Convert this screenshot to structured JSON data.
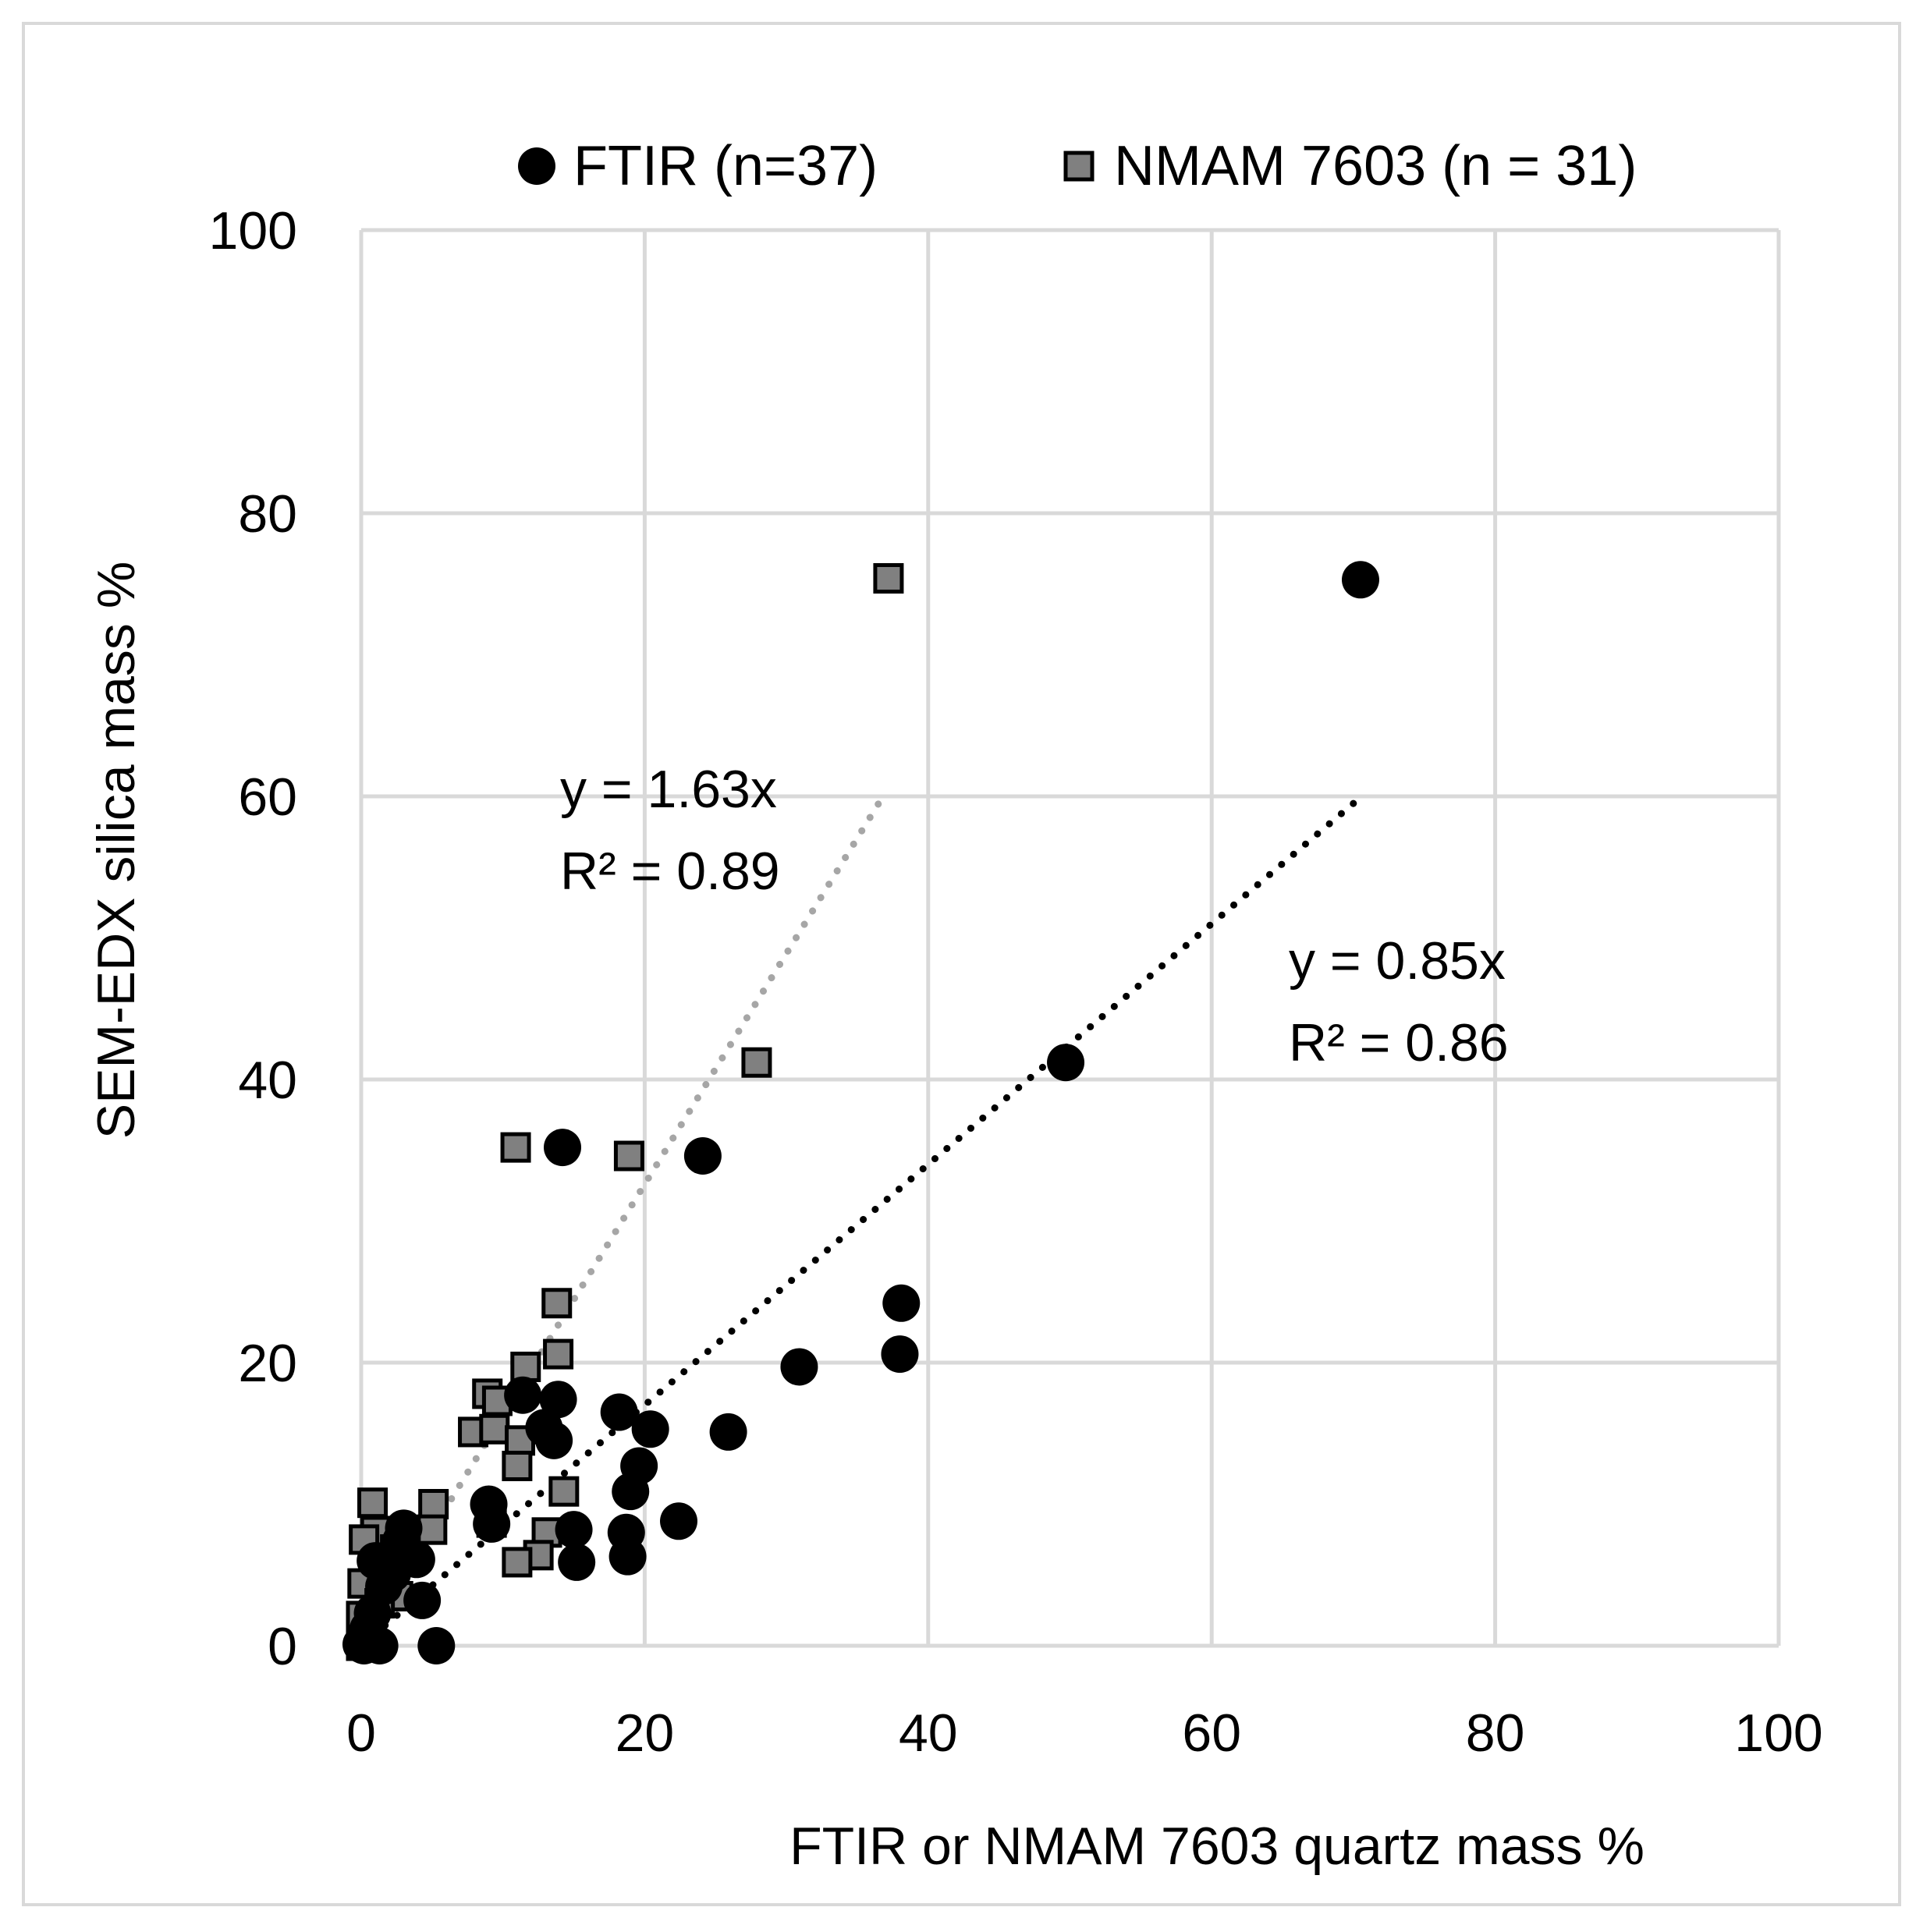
{
  "chart_data": {
    "type": "scatter",
    "title": "",
    "xlabel": "FTIR or NMAM 7603 quartz mass %",
    "ylabel": "SEM-EDX silica mass %",
    "xlim": [
      0,
      100
    ],
    "ylim": [
      0,
      100
    ],
    "x_ticks": [
      0,
      20,
      40,
      60,
      80,
      100
    ],
    "y_ticks": [
      0,
      20,
      40,
      60,
      80,
      100
    ],
    "grid": true,
    "legend_position": "top",
    "series": [
      {
        "name": "FTIR (n=37)",
        "marker": "circle",
        "color": "#000000",
        "points": [
          [
            70.5,
            75.3
          ],
          [
            49.7,
            41.2
          ],
          [
            24.1,
            34.6
          ],
          [
            14.2,
            35.2
          ],
          [
            38.1,
            24.2
          ],
          [
            38.0,
            20.6
          ],
          [
            30.9,
            19.7
          ],
          [
            25.9,
            15.1
          ],
          [
            20.4,
            15.3
          ],
          [
            19.6,
            12.7
          ],
          [
            19.0,
            10.9
          ],
          [
            18.2,
            16.5
          ],
          [
            22.4,
            8.8
          ],
          [
            18.7,
            8.0
          ],
          [
            18.8,
            6.3
          ],
          [
            15.2,
            5.9
          ],
          [
            15.0,
            8.2
          ],
          [
            13.9,
            17.4
          ],
          [
            13.6,
            14.5
          ],
          [
            12.9,
            15.4
          ],
          [
            11.4,
            17.7
          ],
          [
            9.0,
            10.0
          ],
          [
            9.2,
            8.6
          ],
          [
            5.3,
            0.0
          ],
          [
            4.3,
            3.2
          ],
          [
            3.9,
            6.1
          ],
          [
            3.0,
            8.3
          ],
          [
            2.2,
            5.1
          ],
          [
            1.6,
            4.2
          ],
          [
            1.3,
            0.0
          ],
          [
            0.8,
            2.3
          ],
          [
            0.5,
            1.2
          ],
          [
            0.2,
            0.0
          ],
          [
            0.0,
            0.1
          ],
          [
            0.3,
            0.5
          ],
          [
            2.8,
            7.4
          ],
          [
            1.0,
            6.0
          ]
        ]
      },
      {
        "name": "NMAM 7603 (n = 31)",
        "marker": "square",
        "color": "#808080",
        "points": [
          [
            37.2,
            75.4
          ],
          [
            27.9,
            41.2
          ],
          [
            10.9,
            35.2
          ],
          [
            18.9,
            34.6
          ],
          [
            13.8,
            24.2
          ],
          [
            13.9,
            20.6
          ],
          [
            11.6,
            19.7
          ],
          [
            8.9,
            17.8
          ],
          [
            9.6,
            17.3
          ],
          [
            7.9,
            15.1
          ],
          [
            9.4,
            15.3
          ],
          [
            11.2,
            14.5
          ],
          [
            11.0,
            12.7
          ],
          [
            14.3,
            10.9
          ],
          [
            9.2,
            8.7
          ],
          [
            13.1,
            8.0
          ],
          [
            12.5,
            6.4
          ],
          [
            11.0,
            5.9
          ],
          [
            5.1,
            10.0
          ],
          [
            5.0,
            8.2
          ],
          [
            0.8,
            10.1
          ],
          [
            1.0,
            8.1
          ],
          [
            2.4,
            6.8
          ],
          [
            1.1,
            5.9
          ],
          [
            0.2,
            7.5
          ],
          [
            2.6,
            3.5
          ],
          [
            0.1,
            4.4
          ],
          [
            0.0,
            2.1
          ],
          [
            0.0,
            0.0
          ],
          [
            1.3,
            3.0
          ],
          [
            0.6,
            1.0
          ]
        ]
      }
    ],
    "trendlines": [
      {
        "series": "FTIR (n=37)",
        "slope": 0.85,
        "x_range": [
          0,
          70
        ],
        "color": "#000000",
        "equation": "y = 0.85x",
        "r2": "R² = 0.86"
      },
      {
        "series": "NMAM 7603 (n = 31)",
        "slope": 1.63,
        "x_range": [
          0,
          37
        ],
        "color": "#a6a6a6",
        "equation": "y = 1.63x",
        "r2": "R² = 0.89"
      }
    ]
  }
}
